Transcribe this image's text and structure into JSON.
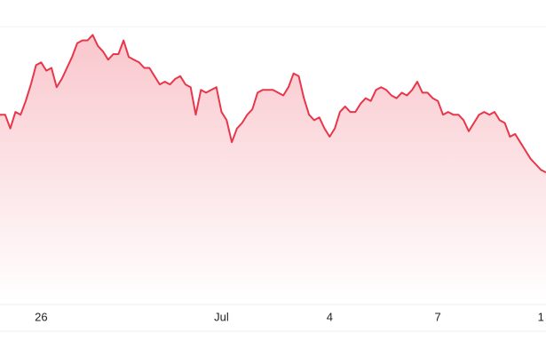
{
  "chart_data": {
    "type": "area",
    "values": [
      68,
      68,
      63,
      69,
      68,
      73,
      79,
      86,
      87,
      84,
      85,
      78,
      81,
      85,
      89,
      94,
      95,
      95,
      97,
      93,
      91,
      88,
      90,
      90,
      95,
      89,
      88,
      87,
      85,
      85,
      82,
      79,
      80,
      79,
      81,
      82,
      79,
      78,
      68,
      77,
      76,
      77,
      78,
      69,
      66,
      58,
      63,
      65,
      68,
      70,
      76,
      77,
      77,
      77,
      76,
      75,
      78,
      83,
      82,
      74,
      68,
      66,
      67,
      63,
      60,
      63,
      69,
      71,
      69,
      69,
      72,
      74,
      73,
      77,
      78,
      77,
      75,
      74,
      76,
      75,
      77,
      80,
      76,
      76,
      74,
      73,
      68,
      69,
      68,
      68,
      66,
      62,
      65,
      68,
      69,
      68,
      69,
      66,
      65,
      60,
      61,
      58,
      55,
      52,
      50,
      48,
      47
    ],
    "color": "#e8364a",
    "xlim": [
      0,
      106
    ],
    "ylim": [
      0,
      100
    ],
    "xticks": [
      {
        "value": 8,
        "label": "26"
      },
      {
        "value": 43,
        "label": "Jul"
      },
      {
        "value": 64,
        "label": "4"
      },
      {
        "value": 85,
        "label": "7"
      },
      {
        "value": 105,
        "label": "1"
      }
    ]
  }
}
